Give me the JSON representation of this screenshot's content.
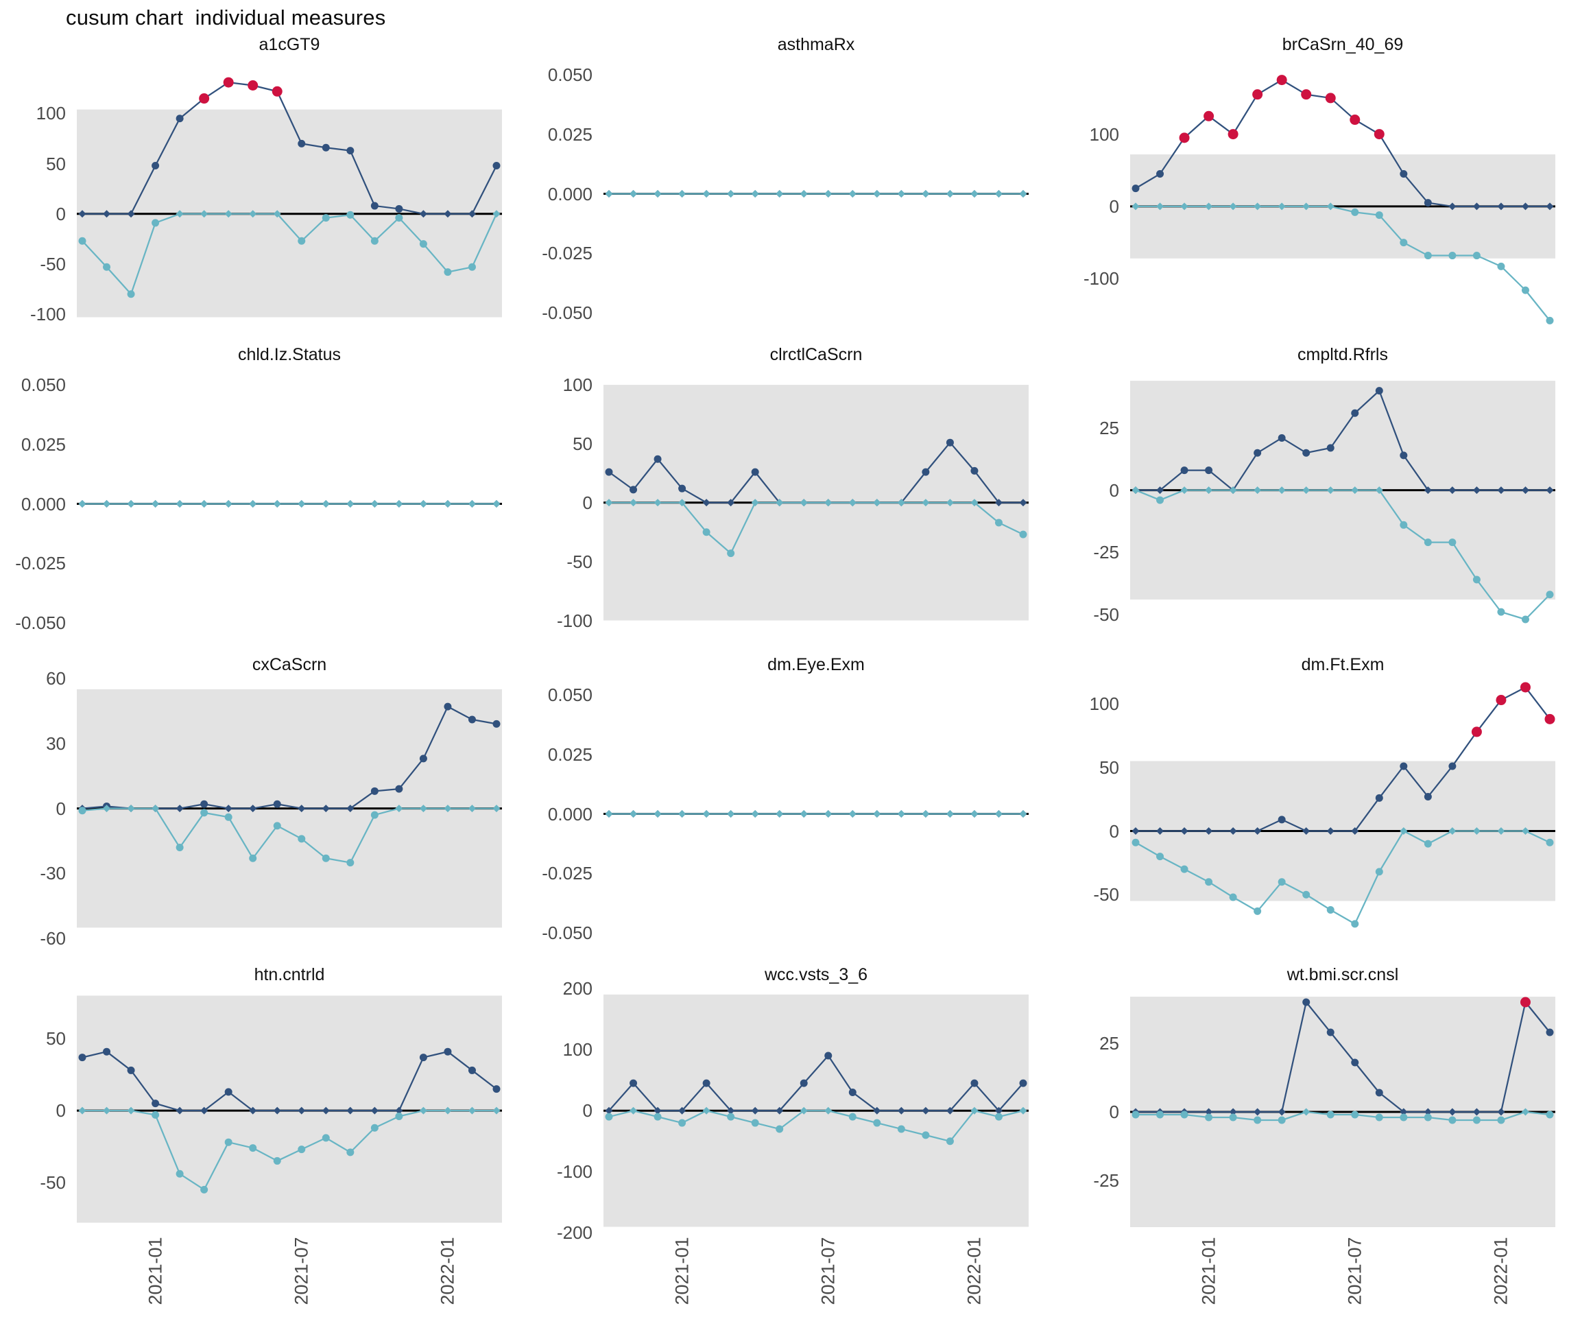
{
  "page_title": "cusum chart  individual measures",
  "colors": {
    "positive_series": "#31517d",
    "negative_series": "#68b5c4",
    "signal_points": "#ce1240",
    "control_band": "#e3e3e3",
    "zero_line": "#000000",
    "axis_text": "#4a4a4a",
    "facet_title_text": "#111111"
  },
  "chart_data": {
    "type": "line",
    "layout": "facet-grid 3 cols x 4 rows",
    "grid": "off",
    "legend": "none",
    "n_points": 18,
    "x_axis": {
      "tick_indices": [
        3,
        9,
        15
      ],
      "tick_labels": [
        "2021-01",
        "2021-07",
        "2022-01"
      ],
      "label_rotation_deg": 90
    },
    "series_meaning": {
      "pos": "positive cusum (navy)",
      "neg": "negative cusum (teal)",
      "red_indices": "out-of-control signal points on positive series (red)"
    },
    "facets": [
      {
        "title": "a1cGT9",
        "ylim": [
          -115,
          155
        ],
        "band": [
          -103,
          104
        ],
        "yticks": [
          {
            "v": 100,
            "label": "100"
          },
          {
            "v": 50,
            "label": "50"
          },
          {
            "v": 0,
            "label": "0"
          },
          {
            "v": -50,
            "label": "-50"
          },
          {
            "v": -100,
            "label": "-100"
          }
        ],
        "pos": [
          0,
          0,
          0,
          48,
          95,
          115,
          131,
          128,
          122,
          70,
          66,
          63,
          8,
          5,
          0,
          0,
          0,
          48
        ],
        "neg": [
          -27,
          -53,
          -80,
          -9,
          0,
          0,
          0,
          0,
          0,
          -27,
          -4,
          -1,
          -27,
          -4,
          -30,
          -58,
          -53,
          0
        ],
        "red_indices": [
          5,
          6,
          7,
          8
        ]
      },
      {
        "title": "asthmaRx",
        "ylim": [
          -0.057,
          0.057
        ],
        "band": null,
        "yticks": [
          {
            "v": 0.05,
            "label": "0.050"
          },
          {
            "v": 0.025,
            "label": "0.025"
          },
          {
            "v": 0,
            "label": "0.000"
          },
          {
            "v": -0.025,
            "label": "-0.025"
          },
          {
            "v": -0.05,
            "label": "-0.050"
          }
        ],
        "pos": [
          0,
          0,
          0,
          0,
          0,
          0,
          0,
          0,
          0,
          0,
          0,
          0,
          0,
          0,
          0,
          0,
          0,
          0
        ],
        "neg": [
          0,
          0,
          0,
          0,
          0,
          0,
          0,
          0,
          0,
          0,
          0,
          0,
          0,
          0,
          0,
          0,
          0,
          0
        ],
        "red_indices": []
      },
      {
        "title": "brCaSrn_40_69",
        "ylim": [
          -170,
          205
        ],
        "band": [
          -72,
          72
        ],
        "yticks": [
          {
            "v": 100,
            "label": "100"
          },
          {
            "v": 0,
            "label": "0"
          },
          {
            "v": -100,
            "label": "-100"
          }
        ],
        "pos": [
          25,
          45,
          95,
          125,
          100,
          155,
          175,
          155,
          150,
          120,
          100,
          45,
          5,
          0,
          0,
          0,
          0,
          0
        ],
        "neg": [
          0,
          0,
          0,
          0,
          0,
          0,
          0,
          0,
          0,
          -8,
          -12,
          -50,
          -68,
          -68,
          -68,
          -83,
          -116,
          -158
        ],
        "red_indices": [
          2,
          3,
          4,
          5,
          6,
          7,
          8,
          9,
          10
        ]
      },
      {
        "title": "chld.Iz.Status",
        "ylim": [
          -0.057,
          0.057
        ],
        "band": null,
        "yticks": [
          {
            "v": 0.05,
            "label": "0.050"
          },
          {
            "v": 0.025,
            "label": "0.025"
          },
          {
            "v": 0,
            "label": "0.000"
          },
          {
            "v": -0.025,
            "label": "-0.025"
          },
          {
            "v": -0.05,
            "label": "-0.050"
          }
        ],
        "pos": [
          0,
          0,
          0,
          0,
          0,
          0,
          0,
          0,
          0,
          0,
          0,
          0,
          0,
          0,
          0,
          0,
          0,
          0
        ],
        "neg": [
          0,
          0,
          0,
          0,
          0,
          0,
          0,
          0,
          0,
          0,
          0,
          0,
          0,
          0,
          0,
          0,
          0,
          0
        ],
        "red_indices": []
      },
      {
        "title": "clrctlCaScrn",
        "ylim": [
          -116,
          114
        ],
        "band": [
          -100,
          100
        ],
        "yticks": [
          {
            "v": 100,
            "label": "100"
          },
          {
            "v": 50,
            "label": "50"
          },
          {
            "v": 0,
            "label": "0"
          },
          {
            "v": -50,
            "label": "-50"
          },
          {
            "v": -100,
            "label": "-100"
          }
        ],
        "pos": [
          26,
          11,
          37,
          12,
          0,
          0,
          26,
          0,
          0,
          0,
          0,
          0,
          0,
          26,
          51,
          27,
          0,
          0
        ],
        "neg": [
          0,
          0,
          0,
          0,
          -25,
          -43,
          0,
          0,
          0,
          0,
          0,
          0,
          0,
          0,
          0,
          0,
          -17,
          -27
        ],
        "red_indices": []
      },
      {
        "title": "cmpltd.Rfrls",
        "ylim": [
          -60,
          49
        ],
        "band": [
          -44,
          44
        ],
        "yticks": [
          {
            "v": 25,
            "label": "25"
          },
          {
            "v": 0,
            "label": "0"
          },
          {
            "v": -25,
            "label": "-25"
          },
          {
            "v": -50,
            "label": "-50"
          }
        ],
        "pos": [
          0,
          0,
          8,
          8,
          0,
          15,
          21,
          15,
          17,
          31,
          40,
          14,
          0,
          0,
          0,
          0,
          0,
          0
        ],
        "neg": [
          0,
          -4,
          0,
          0,
          0,
          0,
          0,
          0,
          0,
          0,
          0,
          -14,
          -21,
          -21,
          -36,
          -49,
          -52,
          -42
        ],
        "red_indices": []
      },
      {
        "title": "cxCaScrn",
        "ylim": [
          -65,
          60
        ],
        "band": [
          -55,
          55
        ],
        "yticks": [
          {
            "v": 60,
            "label": "60"
          },
          {
            "v": 30,
            "label": "30"
          },
          {
            "v": 0,
            "label": "0"
          },
          {
            "v": -30,
            "label": "-30"
          },
          {
            "v": -60,
            "label": "-60"
          }
        ],
        "pos": [
          0,
          1,
          0,
          0,
          0,
          2,
          0,
          0,
          2,
          0,
          0,
          0,
          8,
          9,
          23,
          47,
          41,
          39
        ],
        "neg": [
          -1,
          0,
          0,
          0,
          -18,
          -2,
          -4,
          -23,
          -8,
          -14,
          -23,
          -25,
          -3,
          0,
          0,
          0,
          0,
          0
        ],
        "red_indices": []
      },
      {
        "title": "dm.Eye.Exm",
        "ylim": [
          -0.057,
          0.057
        ],
        "band": null,
        "yticks": [
          {
            "v": 0.05,
            "label": "0.050"
          },
          {
            "v": 0.025,
            "label": "0.025"
          },
          {
            "v": 0,
            "label": "0.000"
          },
          {
            "v": -0.025,
            "label": "-0.025"
          },
          {
            "v": -0.05,
            "label": "-0.050"
          }
        ],
        "pos": [
          0,
          0,
          0,
          0,
          0,
          0,
          0,
          0,
          0,
          0,
          0,
          0,
          0,
          0,
          0,
          0,
          0,
          0
        ],
        "neg": [
          0,
          0,
          0,
          0,
          0,
          0,
          0,
          0,
          0,
          0,
          0,
          0,
          0,
          0,
          0,
          0,
          0,
          0
        ],
        "red_indices": []
      },
      {
        "title": "dm.Ft.Exm",
        "ylim": [
          -93,
          120
        ],
        "band": [
          -55,
          55
        ],
        "yticks": [
          {
            "v": 100,
            "label": "100"
          },
          {
            "v": 50,
            "label": "50"
          },
          {
            "v": 0,
            "label": "0"
          },
          {
            "v": -50,
            "label": "-50"
          }
        ],
        "pos": [
          0,
          0,
          0,
          0,
          0,
          0,
          9,
          0,
          0,
          0,
          26,
          51,
          27,
          51,
          78,
          103,
          113,
          88
        ],
        "neg": [
          -9,
          -20,
          -30,
          -40,
          -52,
          -63,
          -40,
          -50,
          -62,
          -73,
          -32,
          0,
          -10,
          0,
          0,
          0,
          0,
          -9
        ],
        "red_indices": [
          14,
          15,
          16,
          17
        ]
      },
      {
        "title": "htn.cntrld",
        "ylim": [
          -83,
          85
        ],
        "band": [
          -78,
          80
        ],
        "yticks": [
          {
            "v": 50,
            "label": "50"
          },
          {
            "v": 0,
            "label": "0"
          },
          {
            "v": -50,
            "label": "-50"
          }
        ],
        "pos": [
          37,
          41,
          28,
          5,
          0,
          0,
          13,
          0,
          0,
          0,
          0,
          0,
          0,
          0,
          37,
          41,
          28,
          15
        ],
        "neg": [
          0,
          0,
          0,
          -3,
          -44,
          -55,
          -22,
          -26,
          -35,
          -27,
          -19,
          -29,
          -12,
          -4,
          0,
          0,
          0,
          0
        ],
        "red_indices": []
      },
      {
        "title": "wcc.vsts_3_6",
        "ylim": [
          -195,
          200
        ],
        "band": [
          -190,
          190
        ],
        "yticks": [
          {
            "v": 200,
            "label": "200"
          },
          {
            "v": 100,
            "label": "100"
          },
          {
            "v": 0,
            "label": "0"
          },
          {
            "v": -100,
            "label": "-100"
          },
          {
            "v": -200,
            "label": "-200"
          }
        ],
        "pos": [
          0,
          45,
          0,
          0,
          45,
          0,
          0,
          0,
          45,
          90,
          30,
          0,
          0,
          0,
          0,
          45,
          0,
          45
        ],
        "neg": [
          -10,
          0,
          -10,
          -20,
          0,
          -10,
          -20,
          -30,
          0,
          0,
          -10,
          -20,
          -30,
          -40,
          -50,
          0,
          -10,
          0
        ],
        "red_indices": []
      },
      {
        "title": "wt.bmi.scr.cnsl",
        "ylim": [
          -43,
          45
        ],
        "band": [
          -42,
          42
        ],
        "yticks": [
          {
            "v": 25,
            "label": "25"
          },
          {
            "v": 0,
            "label": "0"
          },
          {
            "v": -25,
            "label": "-25"
          }
        ],
        "pos": [
          0,
          0,
          0,
          0,
          0,
          0,
          0,
          40,
          29,
          18,
          7,
          0,
          0,
          0,
          0,
          0,
          40,
          29
        ],
        "neg": [
          -1,
          -1,
          -1,
          -2,
          -2,
          -3,
          -3,
          0,
          -1,
          -1,
          -2,
          -2,
          -2,
          -3,
          -3,
          -3,
          0,
          -1
        ],
        "red_indices": [
          16
        ]
      }
    ]
  }
}
